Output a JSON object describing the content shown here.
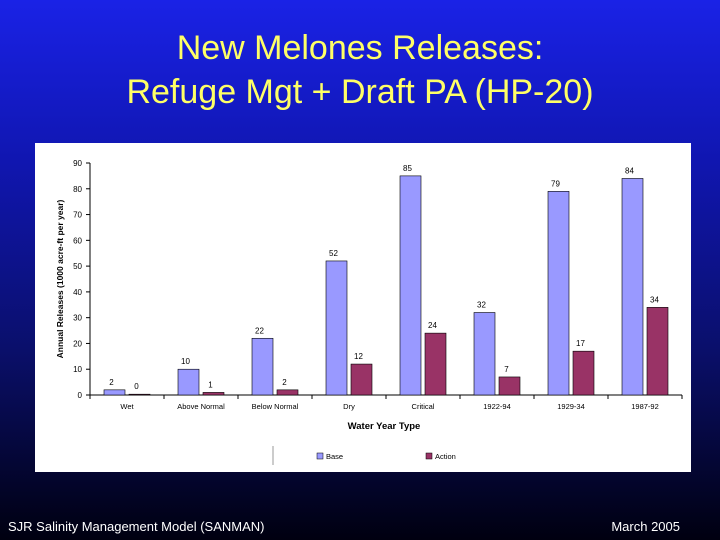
{
  "slide": {
    "title_line1": "New Melones Releases:",
    "title_line2": "Refuge Mgt + Draft PA (HP-20)",
    "footer_left": "SJR Salinity Management Model (SANMAN)",
    "footer_right": "March 2005"
  },
  "colors": {
    "base": "#9999ff",
    "action": "#993366",
    "title": "#ffff66"
  },
  "chart_data": {
    "type": "bar",
    "title": "",
    "xlabel": "Water Year Type",
    "ylabel": "Annual Releases (1000 acre-ft per year)",
    "ylim": [
      0,
      90
    ],
    "yticks": [
      0,
      10,
      20,
      30,
      40,
      50,
      60,
      70,
      80,
      90
    ],
    "grid": false,
    "legend_position": "bottom",
    "categories": [
      "Wet",
      "Above Normal",
      "Below Normal",
      "Dry",
      "Critical",
      "1922-94",
      "1929-34",
      "1987-92"
    ],
    "series": [
      {
        "name": "Base",
        "values": [
          2,
          10,
          22,
          52,
          85,
          32,
          79,
          84
        ]
      },
      {
        "name": "Action",
        "values": [
          0,
          1,
          2,
          12,
          24,
          7,
          17,
          34
        ]
      }
    ]
  }
}
